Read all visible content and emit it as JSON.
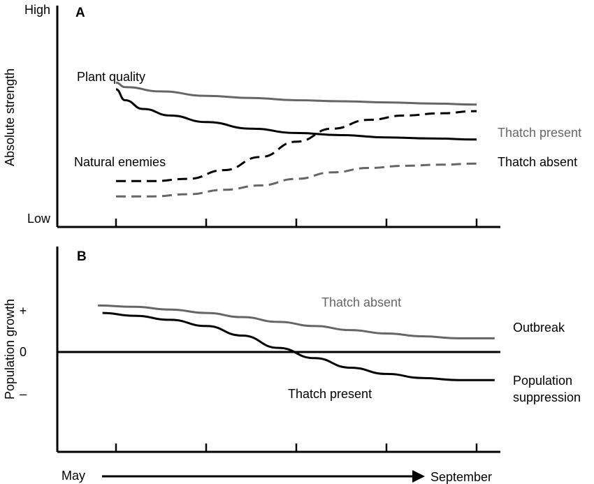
{
  "chart_data": [
    {
      "panel": "A",
      "type": "line",
      "ylabel": "Absolute strength",
      "y_tick_labels": [
        "High",
        "Low"
      ],
      "xlim": [
        0,
        5
      ],
      "ylim": [
        0,
        1
      ],
      "x_ticks": [
        0,
        1,
        2,
        3,
        4
      ],
      "series": [
        {
          "name": "Plant quality",
          "condition": "Thatch present",
          "color": "#666666",
          "dash": false,
          "x": [
            0,
            0.1,
            0.5,
            1,
            1.5,
            2,
            2.5,
            3,
            3.5,
            4
          ],
          "y": [
            0.66,
            0.64,
            0.62,
            0.6,
            0.59,
            0.58,
            0.575,
            0.57,
            0.565,
            0.56
          ]
        },
        {
          "name": "Plant quality",
          "condition": "Thatch absent",
          "color": "#000000",
          "dash": false,
          "x": [
            0,
            0.1,
            0.3,
            0.6,
            1,
            1.5,
            2,
            2.5,
            3,
            3.5,
            4
          ],
          "y": [
            0.63,
            0.58,
            0.54,
            0.51,
            0.48,
            0.45,
            0.43,
            0.42,
            0.41,
            0.405,
            0.4
          ]
        },
        {
          "name": "Natural enemies",
          "condition": "Thatch present",
          "color": "#000000",
          "dash": true,
          "x": [
            0,
            0.4,
            0.8,
            1.2,
            1.6,
            2,
            2.4,
            2.8,
            3.2,
            3.6,
            4
          ],
          "y": [
            0.21,
            0.21,
            0.22,
            0.26,
            0.32,
            0.39,
            0.45,
            0.49,
            0.51,
            0.52,
            0.53
          ]
        },
        {
          "name": "Natural enemies",
          "condition": "Thatch absent",
          "color": "#666666",
          "dash": true,
          "x": [
            0,
            0.4,
            0.8,
            1.2,
            1.6,
            2,
            2.4,
            2.8,
            3.2,
            3.6,
            4
          ],
          "y": [
            0.14,
            0.14,
            0.15,
            0.17,
            0.19,
            0.22,
            0.25,
            0.27,
            0.28,
            0.285,
            0.29
          ]
        }
      ],
      "labels": {
        "plant_quality": "Plant quality",
        "natural_enemies": "Natural enemies",
        "thatch_present": "Thatch present",
        "thatch_absent": "Thatch absent"
      }
    },
    {
      "panel": "B",
      "type": "line",
      "ylabel": "Population growth",
      "y_tick_labels": [
        "+",
        "0",
        "–"
      ],
      "xlim": [
        0,
        5
      ],
      "ylim": [
        -1,
        1
      ],
      "x_ticks": [
        0,
        1,
        2,
        3,
        4
      ],
      "series": [
        {
          "name": "Thatch absent",
          "color": "#666666",
          "dash": false,
          "x": [
            -0.2,
            0.2,
            0.6,
            1,
            1.4,
            1.8,
            2.2,
            2.6,
            3,
            3.4,
            3.8,
            4.2
          ],
          "y": [
            0.68,
            0.66,
            0.62,
            0.57,
            0.51,
            0.44,
            0.38,
            0.32,
            0.27,
            0.23,
            0.2,
            0.2
          ]
        },
        {
          "name": "Thatch present",
          "color": "#000000",
          "dash": false,
          "x": [
            -0.15,
            0.2,
            0.6,
            1,
            1.4,
            1.8,
            2.2,
            2.6,
            3,
            3.4,
            3.8,
            4.2
          ],
          "y": [
            0.57,
            0.53,
            0.47,
            0.38,
            0.24,
            0.06,
            -0.09,
            -0.23,
            -0.32,
            -0.38,
            -0.41,
            -0.41
          ]
        }
      ],
      "labels": {
        "thatch_absent": "Thatch absent",
        "thatch_present": "Thatch present",
        "outbreak": "Outbreak",
        "suppression_line1": "Population",
        "suppression_line2": "suppression"
      }
    }
  ],
  "x_axis": {
    "start_label": "May",
    "end_label": "September"
  },
  "colors": {
    "black": "#000000",
    "gray": "#666666"
  }
}
